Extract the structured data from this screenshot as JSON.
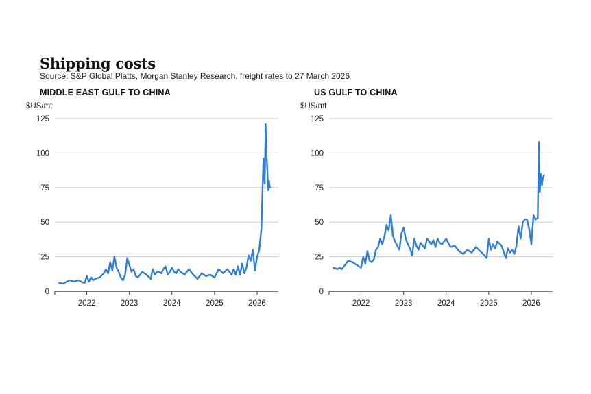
{
  "title": "Shipping costs",
  "subtitle": "Source: S&P Global Platts, Morgan Stanley Research, freight rates to 27 March 2026",
  "colors": {
    "line": "#2f7fd6",
    "grid": "#cccccc",
    "axis": "#333333"
  },
  "chart_data": [
    {
      "type": "line",
      "title": "MIDDLE EAST GULF TO CHINA",
      "ylabel": "$US/mt",
      "xlabel": "",
      "ylim": [
        0,
        125
      ],
      "yticks": [
        0,
        25,
        50,
        75,
        100,
        125
      ],
      "xlim": [
        2021.25,
        2026.5
      ],
      "xtick_values": [
        2022,
        2023,
        2024,
        2025,
        2026
      ],
      "xtick_labels": [
        "2022",
        "2023",
        "2024",
        "2025",
        "2026"
      ],
      "grid": true,
      "series": [
        {
          "name": "Middle East Gulf to China",
          "x": [
            2021.35,
            2021.45,
            2021.5,
            2021.6,
            2021.7,
            2021.8,
            2021.9,
            2021.95,
            2022.0,
            2022.05,
            2022.1,
            2022.15,
            2022.2,
            2022.3,
            2022.4,
            2022.45,
            2022.5,
            2022.55,
            2022.6,
            2022.65,
            2022.7,
            2022.75,
            2022.8,
            2022.85,
            2022.9,
            2022.95,
            2023.0,
            2023.05,
            2023.1,
            2023.15,
            2023.2,
            2023.3,
            2023.4,
            2023.5,
            2023.55,
            2023.6,
            2023.65,
            2023.7,
            2023.75,
            2023.8,
            2023.85,
            2023.9,
            2023.95,
            2024.0,
            2024.05,
            2024.1,
            2024.15,
            2024.2,
            2024.3,
            2024.4,
            2024.5,
            2024.6,
            2024.7,
            2024.8,
            2024.9,
            2025.0,
            2025.1,
            2025.2,
            2025.3,
            2025.4,
            2025.45,
            2025.5,
            2025.55,
            2025.6,
            2025.65,
            2025.7,
            2025.75,
            2025.8,
            2025.85,
            2025.9,
            2025.95,
            2026.0,
            2026.05,
            2026.1,
            2026.15,
            2026.18,
            2026.2,
            2026.22,
            2026.24,
            2026.26,
            2026.28,
            2026.3
          ],
          "y": [
            6,
            5.5,
            6.5,
            8,
            7,
            8,
            6.5,
            6,
            11,
            7,
            10,
            8,
            9,
            10,
            13,
            16,
            13,
            21,
            15,
            25,
            17,
            14,
            10,
            8,
            12,
            24,
            19,
            14,
            16,
            11,
            10,
            14,
            12,
            9,
            16,
            12,
            14,
            14,
            13,
            16,
            18,
            12,
            14,
            17,
            14,
            13,
            16,
            14,
            12,
            16,
            12,
            9,
            13,
            11,
            12,
            10,
            16,
            13,
            16,
            12,
            16,
            12,
            18,
            12,
            20,
            13,
            17,
            26,
            22,
            30,
            15,
            25,
            30,
            45,
            96,
            78,
            121,
            100,
            88,
            73,
            80,
            75
          ]
        }
      ]
    },
    {
      "type": "line",
      "title": "US GULF TO CHINA",
      "ylabel": "$US/mt",
      "xlabel": "",
      "ylim": [
        0,
        125
      ],
      "yticks": [
        0,
        25,
        50,
        75,
        100,
        125
      ],
      "xlim": [
        2021.25,
        2026.5
      ],
      "xtick_values": [
        2022,
        2023,
        2024,
        2025,
        2026
      ],
      "xtick_labels": [
        "2022",
        "2023",
        "2024",
        "2025",
        "2026"
      ],
      "grid": true,
      "series": [
        {
          "name": "US Gulf to China",
          "x": [
            2021.35,
            2021.45,
            2021.5,
            2021.55,
            2021.6,
            2021.7,
            2021.8,
            2021.9,
            2021.95,
            2022.0,
            2022.05,
            2022.1,
            2022.15,
            2022.2,
            2022.25,
            2022.3,
            2022.35,
            2022.4,
            2022.45,
            2022.5,
            2022.55,
            2022.6,
            2022.65,
            2022.7,
            2022.75,
            2022.8,
            2022.85,
            2022.9,
            2022.95,
            2023.0,
            2023.05,
            2023.1,
            2023.15,
            2023.2,
            2023.25,
            2023.3,
            2023.35,
            2023.4,
            2023.45,
            2023.5,
            2023.55,
            2023.6,
            2023.65,
            2023.7,
            2023.75,
            2023.8,
            2023.85,
            2023.9,
            2023.95,
            2024.0,
            2024.1,
            2024.2,
            2024.3,
            2024.4,
            2024.5,
            2024.6,
            2024.7,
            2024.8,
            2024.9,
            2024.95,
            2025.0,
            2025.05,
            2025.1,
            2025.15,
            2025.2,
            2025.3,
            2025.4,
            2025.45,
            2025.5,
            2025.55,
            2025.6,
            2025.65,
            2025.7,
            2025.75,
            2025.8,
            2025.85,
            2025.9,
            2025.95,
            2026.0,
            2026.05,
            2026.1,
            2026.15,
            2026.18,
            2026.2,
            2026.22,
            2026.25,
            2026.27,
            2026.3
          ],
          "y": [
            17,
            16,
            17,
            16,
            18,
            22,
            21,
            19,
            18,
            17,
            25,
            20,
            29,
            22,
            21,
            23,
            30,
            32,
            38,
            34,
            40,
            48,
            44,
            55,
            40,
            36,
            33,
            30,
            42,
            46,
            38,
            34,
            31,
            26,
            38,
            33,
            30,
            35,
            33,
            31,
            38,
            36,
            34,
            37,
            32,
            38,
            35,
            34,
            36,
            38,
            32,
            33,
            29,
            27,
            30,
            28,
            32,
            29,
            26,
            24,
            38,
            30,
            34,
            31,
            36,
            33,
            24,
            31,
            28,
            30,
            27,
            33,
            47,
            38,
            50,
            52,
            52,
            45,
            34,
            55,
            52,
            53,
            108,
            72,
            85,
            77,
            82,
            84
          ]
        }
      ]
    }
  ]
}
